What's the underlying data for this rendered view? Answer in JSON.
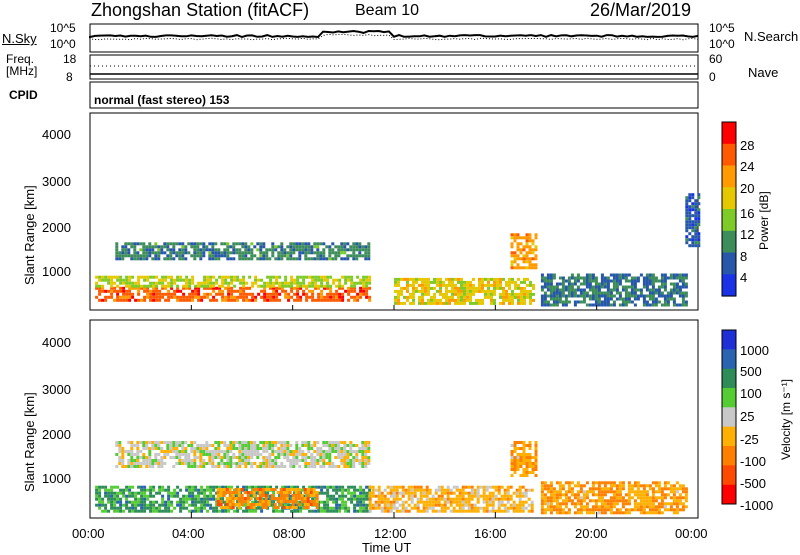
{
  "header": {
    "station": "Zhongshan Station (fitACF)",
    "beam": "Beam 10",
    "date": "26/Mar/2019"
  },
  "top_panel": {
    "left_label": "N.Sky",
    "right_label": "N.Search",
    "left_ticks": [
      "10^5",
      "10^0"
    ],
    "right_ticks": [
      "10^5",
      "10^0"
    ]
  },
  "freq_panel": {
    "left_label_1": "Freq.",
    "left_label_2": "[MHz]",
    "left_ticks": [
      "18",
      "8"
    ],
    "right_label": "Nave",
    "right_ticks": [
      "60",
      "0"
    ]
  },
  "cpid": {
    "label": "CPID",
    "value": "normal (fast stereo) 153"
  },
  "power_panel": {
    "ylabel": "Slant Range [km]",
    "yticks": [
      "4000",
      "3000",
      "2000",
      "1000"
    ],
    "colorbar_label": "Power [dB]",
    "colorbar_ticks": [
      "28",
      "24",
      "20",
      "16",
      "12",
      "8",
      "4"
    ],
    "colorbar_colors": [
      "#ff0000",
      "#ff5a00",
      "#ff9a00",
      "#e6c800",
      "#7ecb28",
      "#3d8d5a",
      "#2757a8",
      "#1a32e6"
    ]
  },
  "velocity_panel": {
    "ylabel": "Slant Range [km]",
    "yticks": [
      "4000",
      "3000",
      "2000",
      "1000"
    ],
    "colorbar_label": "Velocity [m s⁻¹]",
    "colorbar_ticks": [
      "1000",
      "500",
      "100",
      "25",
      "-25",
      "-100",
      "-500",
      "-1000"
    ],
    "colorbar_colors": [
      "#1f2fd8",
      "#2a64b0",
      "#2d8c58",
      "#55cc33",
      "#c8c8c8",
      "#ffb000",
      "#ff8000",
      "#ff4a00",
      "#ff0000"
    ]
  },
  "x_axis": {
    "xlabel": "Time UT",
    "ticks": [
      "00:00",
      "04:00",
      "08:00",
      "12:00",
      "16:00",
      "20:00",
      "00:00"
    ]
  },
  "chart_data": {
    "type": "heatmap",
    "title": "Zhongshan Station (fitACF)   Beam 10   26/Mar/2019",
    "xlabel": "Time UT",
    "ylabel": "Slant Range [km]",
    "x_range_hours": [
      0,
      24
    ],
    "y_range_km": [
      180,
      4600
    ],
    "panels": [
      {
        "name": "Power [dB]",
        "clim": [
          0,
          32
        ],
        "regions": [
          {
            "t0": 0.2,
            "t1": 11.0,
            "r0": 400,
            "r1": 700,
            "value": 26
          },
          {
            "t0": 0.2,
            "t1": 11.0,
            "r0": 700,
            "r1": 950,
            "value": 16
          },
          {
            "t0": 1.0,
            "t1": 11.0,
            "r0": 1350,
            "r1": 1700,
            "value": 9
          },
          {
            "t0": 12.0,
            "t1": 17.5,
            "r0": 350,
            "r1": 900,
            "value": 18
          },
          {
            "t0": 17.8,
            "t1": 23.6,
            "r0": 300,
            "r1": 1000,
            "value": 8
          },
          {
            "t0": 16.6,
            "t1": 17.6,
            "r0": 1100,
            "r1": 1900,
            "value": 22
          },
          {
            "t0": 23.5,
            "t1": 24.0,
            "r0": 1600,
            "r1": 2800,
            "value": 6
          }
        ]
      },
      {
        "name": "Velocity [m s-1]",
        "clim": [
          -1000,
          1000
        ],
        "regions": [
          {
            "t0": 0.2,
            "t1": 11.0,
            "r0": 350,
            "r1": 900,
            "value": 400
          },
          {
            "t0": 1.0,
            "t1": 11.0,
            "r0": 1300,
            "r1": 1900,
            "value": 0
          },
          {
            "t0": 5.0,
            "t1": 9.0,
            "r0": 400,
            "r1": 850,
            "value": -400
          },
          {
            "t0": 11.0,
            "t1": 17.5,
            "r0": 350,
            "r1": 900,
            "value": -200
          },
          {
            "t0": 17.8,
            "t1": 23.6,
            "r0": 300,
            "r1": 1000,
            "value": -300
          },
          {
            "t0": 16.6,
            "t1": 17.6,
            "r0": 1100,
            "r1": 1900,
            "value": -300
          }
        ]
      }
    ]
  }
}
